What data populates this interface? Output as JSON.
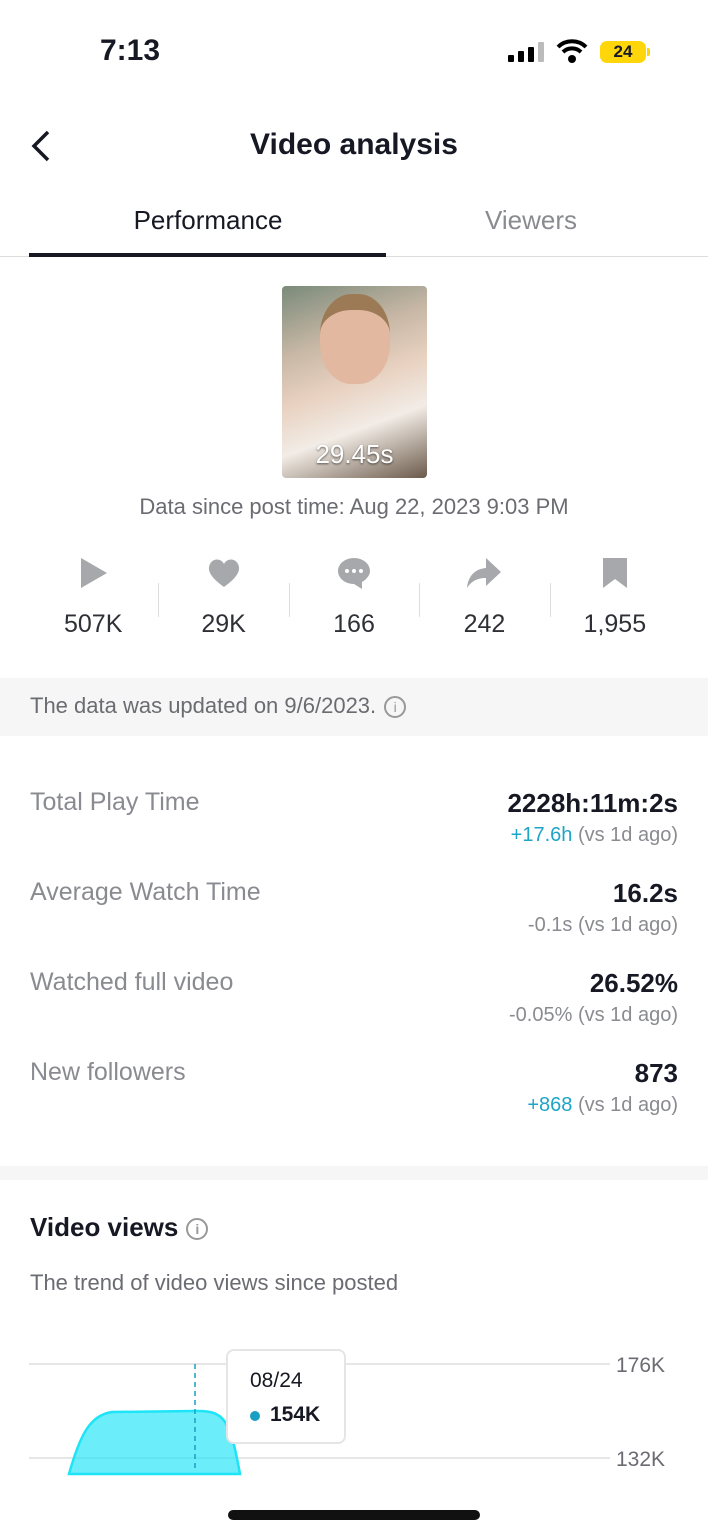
{
  "status_bar": {
    "time": "7:13",
    "battery": "24"
  },
  "header": {
    "title": "Video analysis",
    "back_icon": "chevron-left-icon"
  },
  "tabs": [
    {
      "label": "Performance",
      "active": true
    },
    {
      "label": "Viewers",
      "active": false
    }
  ],
  "video": {
    "duration": "29.45s",
    "since": "Data since post time: Aug 22, 2023 9:03 PM"
  },
  "stats": [
    {
      "icon": "play-icon",
      "value": "507K"
    },
    {
      "icon": "heart-icon",
      "value": "29K"
    },
    {
      "icon": "comment-icon",
      "value": "166"
    },
    {
      "icon": "share-icon",
      "value": "242"
    },
    {
      "icon": "bookmark-icon",
      "value": "1,955"
    }
  ],
  "banner": "The data was updated on 9/6/2023.",
  "metrics": [
    {
      "label": "Total Play Time",
      "value": "2228h:11m:2s",
      "delta": "+17.6h",
      "compare": "(vs 1d ago)"
    },
    {
      "label": "Average Watch Time",
      "value": "16.2s",
      "delta": "-0.1s",
      "compare": "(vs 1d ago)"
    },
    {
      "label": "Watched full video",
      "value": "26.52%",
      "delta": "-0.05%",
      "compare": "(vs 1d ago)"
    },
    {
      "label": "New followers",
      "value": "873",
      "delta": "+868",
      "compare": "(vs 1d ago)"
    }
  ],
  "video_views": {
    "title": "Video views",
    "subtitle": "The trend of video views since posted"
  },
  "chart_data": {
    "type": "area",
    "y_ticks": [
      "176K",
      "132K"
    ],
    "tooltip": {
      "date": "08/24",
      "value": "154K"
    },
    "points": [
      {
        "x": "08/24",
        "y": 154000
      }
    ],
    "color": "#1de4f7",
    "grid": true
  }
}
